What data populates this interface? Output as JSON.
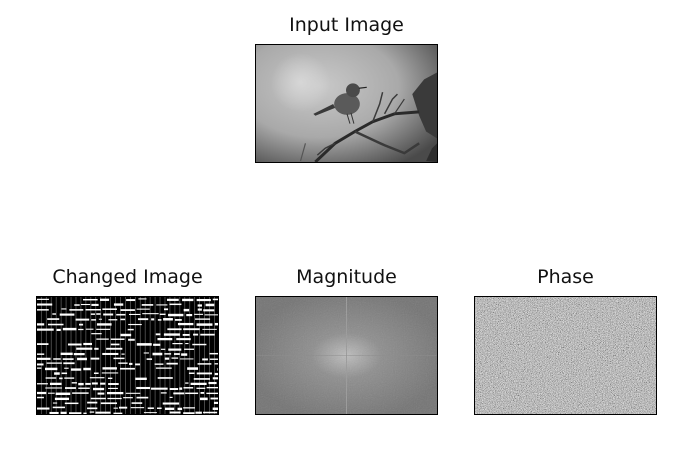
{
  "figure": {
    "panels": [
      {
        "id": "input",
        "title": "Input Image"
      },
      {
        "id": "changed",
        "title": "Changed Image"
      },
      {
        "id": "magnitude",
        "title": "Magnitude"
      },
      {
        "id": "phase",
        "title": "Phase"
      }
    ]
  },
  "colors": {
    "background": "#ffffff",
    "axes_border": "#000000",
    "title_text": "#111111"
  }
}
